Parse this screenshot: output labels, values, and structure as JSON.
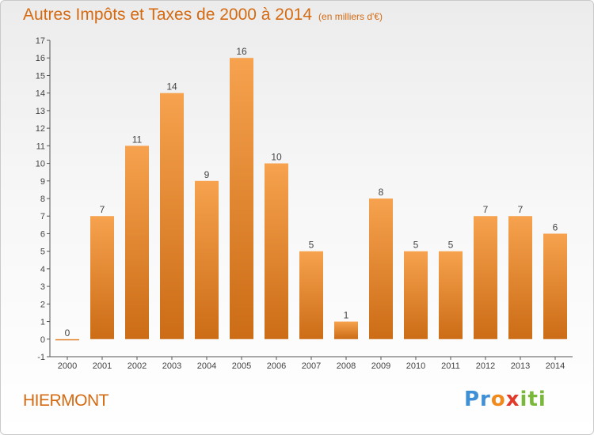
{
  "header": {
    "title": "Autres Impôts et Taxes de 2000 à 2014",
    "unit_note": "(en milliers d'€)"
  },
  "footer": {
    "place": "HIERMONT",
    "brand_parts": [
      "Pr",
      "o",
      "x",
      "iti"
    ]
  },
  "colors": {
    "bar_top": "#f6a24e",
    "bar_bottom": "#cc6c16",
    "title": "#d46a12"
  },
  "chart_data": {
    "type": "bar",
    "title": "Autres Impôts et Taxes de 2000 à 2014",
    "subtitle": "(en milliers d'€)",
    "xlabel": "",
    "ylabel": "",
    "categories": [
      "2000",
      "2001",
      "2002",
      "2003",
      "2004",
      "2005",
      "2006",
      "2007",
      "2008",
      "2009",
      "2010",
      "2011",
      "2012",
      "2013",
      "2014"
    ],
    "values": [
      0,
      7,
      11,
      14,
      9,
      16,
      10,
      5,
      1,
      8,
      5,
      5,
      7,
      7,
      6
    ],
    "ylim": [
      -1,
      17
    ],
    "yticks": [
      -1,
      0,
      1,
      2,
      3,
      4,
      5,
      6,
      7,
      8,
      9,
      10,
      11,
      12,
      13,
      14,
      15,
      16,
      17
    ],
    "grid": false,
    "legend": "none"
  }
}
